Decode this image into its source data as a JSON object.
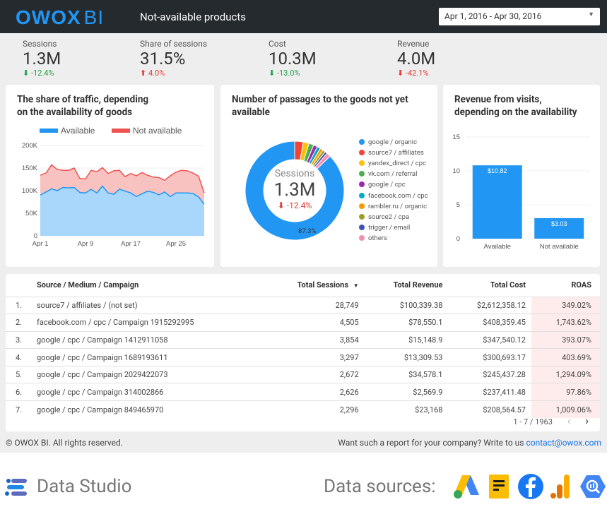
{
  "header": {
    "logo_main": "OWOX",
    "logo_bi": "BI",
    "title": "Not-available products",
    "date_range": "Apr 1, 2016 - Apr 30, 2016"
  },
  "kpis": [
    {
      "label": "Sessions",
      "value": "1.3M",
      "delta": "-12.4%",
      "arrow": "⬇",
      "trend": "green"
    },
    {
      "label": "Share of sessions",
      "value": "31.5%",
      "delta": "4.0%",
      "arrow": "⬆",
      "trend": "red"
    },
    {
      "label": "Cost",
      "value": "10.3M",
      "delta": "-13.0%",
      "arrow": "⬇",
      "trend": "green"
    },
    {
      "label": "Revenue",
      "value": "4.0M",
      "delta": "-42.1%",
      "arrow": "⬇",
      "trend": "red"
    }
  ],
  "charts": {
    "traffic": {
      "title_line1": "The share of traffic, depending",
      "title_line2": "on the availability of goods"
    },
    "passages": {
      "title_line1": "Number of passages to the goods not yet",
      "title_line2": "available",
      "center_label": "Sessions",
      "center_value": "1.3M",
      "center_delta": "-12.4%",
      "center_arrow": "⬇",
      "big_pct_label": "87.3%"
    },
    "revenue": {
      "title_line1": "Revenue from visits,",
      "title_line2": "depending on the availability"
    }
  },
  "chart_data": [
    {
      "type": "area",
      "title": "The share of traffic, depending on the availability of goods",
      "x_ticks": [
        "Apr 1",
        "Apr 9",
        "Apr 17",
        "Apr 25"
      ],
      "y_ticks": [
        "0",
        "50K",
        "100K",
        "150K",
        "200K"
      ],
      "ylim": [
        0,
        200000
      ],
      "x": [
        1,
        2,
        3,
        4,
        5,
        6,
        7,
        8,
        9,
        10,
        11,
        12,
        13,
        14,
        15,
        16,
        17,
        18,
        19,
        20,
        21,
        22,
        23,
        24,
        25,
        26,
        27,
        28,
        29,
        30
      ],
      "series": [
        {
          "name": "Available",
          "color": "#2196f3",
          "values": [
            90000,
            97000,
            104000,
            100000,
            107000,
            106000,
            107000,
            96000,
            95000,
            103000,
            95000,
            110000,
            95000,
            92000,
            103000,
            99000,
            95000,
            87000,
            93000,
            99000,
            96000,
            91000,
            97000,
            87000,
            95000,
            95000,
            95000,
            94000,
            86000,
            70000
          ]
        },
        {
          "name": "Not available",
          "color": "#ef5350",
          "values": [
            44000,
            42000,
            53000,
            47000,
            38000,
            39000,
            43000,
            31000,
            31000,
            42000,
            47000,
            41000,
            43000,
            52000,
            42000,
            32000,
            43000,
            46000,
            47000,
            35000,
            34000,
            38000,
            26000,
            46000,
            46000,
            50000,
            49000,
            45000,
            46000,
            25000
          ]
        }
      ],
      "legend": "top"
    },
    {
      "type": "pie",
      "title": "Number of passages to the goods not yet available",
      "categories": [
        "google / organic",
        "source7 / affiliates",
        "yandex_direct / cpc",
        "vk.com / referral",
        "google / cpc",
        "facebook.com / cpc",
        "rambler.ru / organic",
        "source2 / cpa",
        "trigger / email",
        "others"
      ],
      "values": [
        87.3,
        2.8,
        1.9,
        1.6,
        1.3,
        1.1,
        1.0,
        0.9,
        0.8,
        1.3
      ],
      "colors": [
        "#2196f3",
        "#f44336",
        "#ffc107",
        "#4caf50",
        "#9c27b0",
        "#00acc1",
        "#ff9800",
        "#9e9d24",
        "#3f51b5",
        "#f48fb1"
      ],
      "legend": "right"
    },
    {
      "type": "bar",
      "title": "Revenue from visits, depending on the availability",
      "categories": [
        "Available",
        "Not available"
      ],
      "values": [
        10.82,
        3.03
      ],
      "data_labels": [
        "$10.82",
        "$3.03"
      ],
      "y_ticks": [
        "0",
        "5",
        "10",
        "15"
      ],
      "ylim": [
        0,
        15
      ],
      "color": "#2196f3"
    }
  ],
  "table": {
    "headers": {
      "source": "Source / Medium / Campaign",
      "sessions": "Total Sessions",
      "sort_icon": "▼",
      "revenue": "Total Revenue",
      "cost": "Total Cost",
      "roas": "ROAS"
    },
    "rows": [
      {
        "num": "1.",
        "source": "source7 / affiliates / (not set)",
        "sessions": "28,749",
        "revenue": "$100,339.38",
        "cost": "$2,612,358.12",
        "roas": "349.02%"
      },
      {
        "num": "2.",
        "source": "facebook.com / cpc / Campaign 1915292995",
        "sessions": "4,505",
        "revenue": "$78,550.1",
        "cost": "$408,359.45",
        "roas": "1,743.62%"
      },
      {
        "num": "3.",
        "source": "google / cpc / Campaign 1412911058",
        "sessions": "3,854",
        "revenue": "$15,148.9",
        "cost": "$347,540.12",
        "roas": "393.07%"
      },
      {
        "num": "4.",
        "source": "google / cpc / Campaign 1689193611",
        "sessions": "3,297",
        "revenue": "$13,309.53",
        "cost": "$300,693.17",
        "roas": "403.69%"
      },
      {
        "num": "5.",
        "source": "google / cpc / Campaign 2029422073",
        "sessions": "2,672",
        "revenue": "$34,578.1",
        "cost": "$245,437.28",
        "roas": "1,294.09%"
      },
      {
        "num": "6.",
        "source": "google / cpc / Campaign 314002866",
        "sessions": "2,626",
        "revenue": "$2,569.9",
        "cost": "$237,411.48",
        "roas": "97.86%"
      },
      {
        "num": "7.",
        "source": "google / cpc / Campaign 849465970",
        "sessions": "2,296",
        "revenue": "$23,168",
        "cost": "$208,564.57",
        "roas": "1,009.06%"
      }
    ],
    "pager": "1 - 7 / 1963",
    "prev_icon": "‹",
    "next_icon": "›"
  },
  "footer": {
    "copyright": "© OWOX BI. All rights reserved.",
    "cta": "Want such a report for your company? Write to us",
    "email": "contact@owox.com"
  },
  "bottom": {
    "product": "Data Studio",
    "sources_label": "Data sources:"
  },
  "icons": [
    "data-studio-icon",
    "google-ads-icon",
    "google-sheets-icon",
    "facebook-icon",
    "google-analytics-icon",
    "bigquery-icon"
  ]
}
